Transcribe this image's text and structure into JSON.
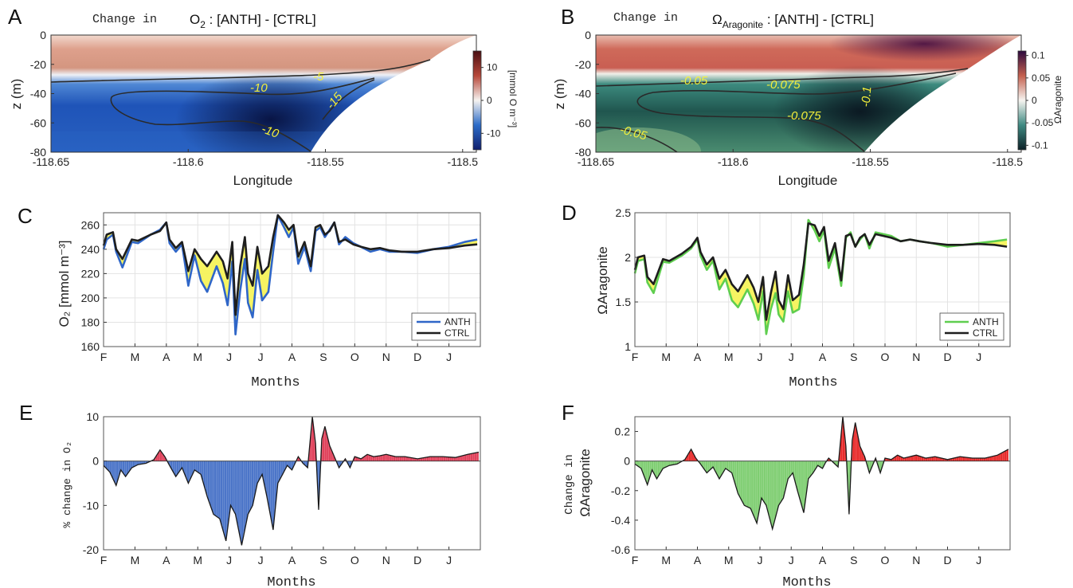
{
  "panels": {
    "A": {
      "letter": "A",
      "title_prefix": "Change in",
      "title_var": "O",
      "title_sub": "2",
      "title_rest": " : [ANTH] - [CTRL]",
      "xlabel": "Longitude",
      "ylabel": "z (m)",
      "cb_label": "[mmol O m⁻³]"
    },
    "B": {
      "letter": "B",
      "title_prefix": "Change in",
      "title_var": "Ω",
      "title_sub": "Aragonite",
      "title_rest": " : [ANTH] - [CTRL]",
      "xlabel": "Longitude",
      "ylabel": "z (m)",
      "cb_label": "ΩAragonite"
    },
    "C": {
      "letter": "C",
      "xlabel": "Months",
      "ylabel": "O₂ [mmol m⁻³]"
    },
    "D": {
      "letter": "D",
      "xlabel": "Months",
      "ylabel": "ΩAragonite"
    },
    "E": {
      "letter": "E",
      "xlabel": "Months",
      "ylabel": "% change in O₂"
    },
    "F": {
      "letter": "F",
      "xlabel": "Months",
      "ylabel_line1": "Change in",
      "ylabel_line2": "ΩAragonite"
    }
  },
  "chart_data": [
    {
      "id": "A",
      "type": "heatmap",
      "title": "Change in O2 : [ANTH] - [CTRL]",
      "xlabel": "Longitude",
      "ylabel": "z (m)",
      "xlim": [
        -118.65,
        -118.495
      ],
      "ylim": [
        -80,
        0
      ],
      "xticks": [
        -118.65,
        -118.6,
        -118.55,
        -118.5
      ],
      "yticks": [
        0,
        -20,
        -40,
        -60,
        -80
      ],
      "colorbar": {
        "label": "[mmol O m-3]",
        "ticks": [
          10,
          0,
          -10
        ],
        "range": [
          -15,
          15
        ],
        "colors": {
          "neg": "#1a3fa8",
          "zero": "#f4f2ef",
          "pos": "#7d1f1f"
        }
      },
      "contours": [
        {
          "level": -5,
          "label": "-5"
        },
        {
          "level": -10,
          "label": "-10"
        },
        {
          "level": -15,
          "label": "-15"
        }
      ],
      "contour_labels": [
        "-5",
        "-10",
        "-15",
        "-10"
      ]
    },
    {
      "id": "B",
      "type": "heatmap",
      "title": "Change in ΩAragonite : [ANTH] - [CTRL]",
      "xlabel": "Longitude",
      "ylabel": "z (m)",
      "xlim": [
        -118.65,
        -118.495
      ],
      "ylim": [
        -80,
        0
      ],
      "xticks": [
        -118.65,
        -118.6,
        -118.55,
        -118.5
      ],
      "yticks": [
        0,
        -20,
        -40,
        -60,
        -80
      ],
      "colorbar": {
        "label": "ΩAragonite",
        "ticks": [
          0.1,
          0.05,
          0,
          -0.05,
          -0.1
        ],
        "range": [
          -0.11,
          0.11
        ],
        "colors": {
          "neg": "#0f2b2e",
          "zero": "#f6f4f0",
          "pos": "#3c1050"
        }
      },
      "contour_labels": [
        "-0.05",
        "-0.075",
        "-0.1",
        "-0.075",
        "-0.05"
      ]
    },
    {
      "id": "C",
      "type": "line",
      "xlabel": "Months",
      "ylabel": "O2 [mmol m-3]",
      "ylim": [
        160,
        270
      ],
      "yticks": [
        160,
        180,
        200,
        220,
        240,
        260
      ],
      "categories": [
        "F",
        "M",
        "A",
        "M",
        "J",
        "J",
        "A",
        "S",
        "O",
        "N",
        "D",
        "J"
      ],
      "grid": true,
      "legend": "bottom-right",
      "fill_color": "#f6f35a",
      "series": [
        {
          "name": "ANTH",
          "color": "#2f66c8",
          "x": [
            0,
            0.1,
            0.3,
            0.4,
            0.6,
            0.9,
            1.1,
            1.5,
            1.8,
            2.0,
            2.1,
            2.3,
            2.5,
            2.7,
            2.9,
            3.1,
            3.3,
            3.6,
            3.8,
            3.95,
            4.1,
            4.2,
            4.35,
            4.5,
            4.6,
            4.75,
            4.9,
            5.05,
            5.25,
            5.4,
            5.55,
            5.75,
            5.9,
            6.05,
            6.2,
            6.4,
            6.6,
            6.75,
            6.9,
            7.05,
            7.2,
            7.35,
            7.5,
            7.7,
            7.95,
            8.2,
            8.5,
            8.8,
            9.1,
            9.5,
            10.0,
            10.5,
            11.0,
            11.5,
            11.9
          ],
          "y": [
            240,
            248,
            252,
            238,
            225,
            246,
            245,
            252,
            256,
            262,
            245,
            238,
            244,
            210,
            235,
            214,
            205,
            226,
            212,
            194,
            230,
            170,
            206,
            232,
            196,
            184,
            223,
            198,
            205,
            238,
            268,
            258,
            250,
            258,
            228,
            242,
            222,
            255,
            258,
            250,
            256,
            262,
            244,
            250,
            245,
            242,
            238,
            240,
            238,
            238,
            237,
            240,
            242,
            246,
            248
          ]
        },
        {
          "name": "CTRL",
          "color": "#1e1e1e",
          "x": [
            0,
            0.1,
            0.3,
            0.4,
            0.6,
            0.9,
            1.1,
            1.5,
            1.8,
            2.0,
            2.1,
            2.3,
            2.5,
            2.7,
            2.9,
            3.1,
            3.3,
            3.6,
            3.8,
            3.95,
            4.1,
            4.2,
            4.35,
            4.5,
            4.6,
            4.75,
            4.9,
            5.05,
            5.25,
            5.4,
            5.55,
            5.75,
            5.9,
            6.05,
            6.2,
            6.4,
            6.6,
            6.75,
            6.9,
            7.05,
            7.2,
            7.35,
            7.5,
            7.7,
            7.95,
            8.2,
            8.5,
            8.8,
            9.1,
            9.5,
            10.0,
            10.5,
            11.0,
            11.5,
            11.9
          ],
          "y": [
            243,
            252,
            254,
            240,
            232,
            248,
            247,
            252,
            255,
            262,
            248,
            241,
            246,
            222,
            240,
            232,
            226,
            238,
            230,
            216,
            246,
            186,
            226,
            250,
            220,
            210,
            242,
            220,
            226,
            250,
            268,
            262,
            256,
            260,
            234,
            246,
            226,
            258,
            260,
            252,
            255,
            262,
            246,
            248,
            244,
            242,
            240,
            241,
            239,
            238,
            238,
            240,
            241,
            243,
            244
          ]
        }
      ]
    },
    {
      "id": "D",
      "type": "line",
      "xlabel": "Months",
      "ylabel": "ΩAragonite",
      "ylim": [
        1,
        2.5
      ],
      "yticks": [
        1,
        1.5,
        2,
        2.5
      ],
      "categories": [
        "F",
        "M",
        "A",
        "M",
        "J",
        "J",
        "A",
        "S",
        "O",
        "N",
        "D",
        "J"
      ],
      "grid": true,
      "legend": "bottom-right",
      "fill_color": "#f6f35a",
      "series": [
        {
          "name": "ANTH",
          "color": "#5fce4f",
          "x": [
            0,
            0.1,
            0.3,
            0.4,
            0.6,
            0.9,
            1.1,
            1.5,
            1.8,
            2.0,
            2.1,
            2.3,
            2.5,
            2.7,
            2.9,
            3.1,
            3.3,
            3.6,
            3.8,
            3.95,
            4.1,
            4.2,
            4.35,
            4.5,
            4.6,
            4.75,
            4.9,
            5.05,
            5.25,
            5.4,
            5.55,
            5.75,
            5.9,
            6.05,
            6.2,
            6.4,
            6.6,
            6.75,
            6.9,
            7.05,
            7.2,
            7.35,
            7.5,
            7.7,
            7.95,
            8.2,
            8.5,
            8.8,
            9.1,
            9.5,
            10.0,
            10.5,
            11.0,
            11.5,
            11.9
          ],
          "y": [
            1.82,
            1.96,
            1.98,
            1.72,
            1.6,
            1.95,
            1.94,
            2.02,
            2.1,
            2.2,
            2.02,
            1.86,
            1.96,
            1.64,
            1.76,
            1.52,
            1.44,
            1.64,
            1.48,
            1.3,
            1.62,
            1.14,
            1.42,
            1.6,
            1.36,
            1.28,
            1.62,
            1.38,
            1.42,
            1.8,
            2.42,
            2.3,
            2.18,
            2.3,
            1.88,
            2.1,
            1.68,
            2.22,
            2.28,
            2.12,
            2.2,
            2.26,
            2.1,
            2.28,
            2.26,
            2.24,
            2.18,
            2.2,
            2.18,
            2.16,
            2.12,
            2.14,
            2.16,
            2.18,
            2.2
          ]
        },
        {
          "name": "CTRL",
          "color": "#1e1e1e",
          "x": [
            0,
            0.1,
            0.3,
            0.4,
            0.6,
            0.9,
            1.1,
            1.5,
            1.8,
            2.0,
            2.1,
            2.3,
            2.5,
            2.7,
            2.9,
            3.1,
            3.3,
            3.6,
            3.8,
            3.95,
            4.1,
            4.2,
            4.35,
            4.5,
            4.6,
            4.75,
            4.9,
            5.05,
            5.25,
            5.4,
            5.55,
            5.75,
            5.9,
            6.05,
            6.2,
            6.4,
            6.6,
            6.75,
            6.9,
            7.05,
            7.2,
            7.35,
            7.5,
            7.7,
            7.95,
            8.2,
            8.5,
            8.8,
            9.1,
            9.5,
            10.0,
            10.5,
            11.0,
            11.5,
            11.9
          ],
          "y": [
            1.86,
            2.0,
            2.02,
            1.78,
            1.7,
            1.98,
            1.96,
            2.04,
            2.12,
            2.22,
            2.06,
            1.92,
            2.0,
            1.76,
            1.86,
            1.7,
            1.62,
            1.8,
            1.66,
            1.5,
            1.78,
            1.3,
            1.6,
            1.84,
            1.52,
            1.42,
            1.8,
            1.52,
            1.58,
            1.92,
            2.38,
            2.36,
            2.24,
            2.34,
            1.96,
            2.16,
            1.74,
            2.24,
            2.26,
            2.12,
            2.22,
            2.26,
            2.14,
            2.26,
            2.24,
            2.22,
            2.18,
            2.2,
            2.18,
            2.16,
            2.14,
            2.14,
            2.15,
            2.14,
            2.12
          ]
        }
      ]
    },
    {
      "id": "E",
      "type": "area",
      "xlabel": "Months",
      "ylabel": "% change in O2",
      "ylim": [
        -20,
        10
      ],
      "yticks": [
        -20,
        -10,
        0,
        10
      ],
      "categories": [
        "F",
        "M",
        "A",
        "M",
        "J",
        "J",
        "A",
        "S",
        "O",
        "N",
        "D",
        "J"
      ],
      "neg_color": "#4a74c8",
      "pos_color": "#e0405a",
      "x": [
        0,
        0.2,
        0.4,
        0.55,
        0.7,
        0.9,
        1.1,
        1.35,
        1.6,
        1.8,
        1.95,
        2.1,
        2.3,
        2.5,
        2.7,
        2.9,
        3.1,
        3.3,
        3.5,
        3.7,
        3.9,
        4.05,
        4.2,
        4.4,
        4.6,
        4.75,
        4.9,
        5.05,
        5.2,
        5.4,
        5.55,
        5.7,
        5.85,
        6.0,
        6.1,
        6.2,
        6.35,
        6.5,
        6.65,
        6.75,
        6.85,
        6.95,
        7.05,
        7.2,
        7.35,
        7.5,
        7.7,
        7.85,
        8.0,
        8.2,
        8.4,
        8.6,
        8.8,
        9.0,
        9.3,
        9.6,
        10.0,
        10.4,
        10.8,
        11.2,
        11.6,
        11.95
      ],
      "y": [
        -1.0,
        -2.5,
        -5.5,
        -2.0,
        -3.5,
        -1.5,
        -0.8,
        -0.5,
        0.3,
        2.5,
        1.0,
        -1.0,
        -3.5,
        -1.5,
        -5.0,
        -2.0,
        -3.0,
        -8.0,
        -12.0,
        -13.0,
        -18.0,
        -10.0,
        -12.0,
        -19.0,
        -12.0,
        -10.0,
        -5.0,
        -3.0,
        -8.0,
        -15.5,
        -5.0,
        -3.0,
        -1.0,
        -2.0,
        -0.5,
        1.0,
        -0.5,
        -1.5,
        10.0,
        4.0,
        -11.0,
        5.0,
        7.8,
        3.5,
        1.0,
        -1.5,
        0.5,
        -1.5,
        1.0,
        0.5,
        1.5,
        1.0,
        1.2,
        1.5,
        1.0,
        1.0,
        0.5,
        1.0,
        1.0,
        0.8,
        1.5,
        2.0
      ]
    },
    {
      "id": "F",
      "type": "area",
      "xlabel": "Months",
      "ylabel": "Change in ΩAragonite",
      "ylim": [
        -0.6,
        0.3
      ],
      "yticks": [
        -0.6,
        -0.4,
        -0.2,
        0,
        0.2
      ],
      "categories": [
        "F",
        "M",
        "A",
        "M",
        "J",
        "J",
        "A",
        "S",
        "O",
        "N",
        "D",
        "J"
      ],
      "neg_color": "#7fce72",
      "pos_color": "#e82a2a",
      "x": [
        0,
        0.2,
        0.4,
        0.55,
        0.7,
        0.9,
        1.1,
        1.35,
        1.6,
        1.8,
        1.95,
        2.1,
        2.3,
        2.5,
        2.7,
        2.9,
        3.1,
        3.3,
        3.5,
        3.7,
        3.9,
        4.05,
        4.2,
        4.4,
        4.6,
        4.75,
        4.9,
        5.05,
        5.2,
        5.4,
        5.55,
        5.7,
        5.85,
        6.0,
        6.1,
        6.2,
        6.35,
        6.5,
        6.65,
        6.75,
        6.85,
        6.95,
        7.05,
        7.2,
        7.35,
        7.5,
        7.7,
        7.85,
        8.0,
        8.2,
        8.4,
        8.6,
        8.8,
        9.0,
        9.3,
        9.6,
        10.0,
        10.4,
        10.8,
        11.2,
        11.6,
        11.95
      ],
      "y": [
        -0.02,
        -0.05,
        -0.16,
        -0.06,
        -0.12,
        -0.05,
        -0.03,
        -0.02,
        0.01,
        0.08,
        0.02,
        -0.02,
        -0.08,
        -0.04,
        -0.12,
        -0.05,
        -0.08,
        -0.22,
        -0.3,
        -0.32,
        -0.42,
        -0.25,
        -0.3,
        -0.46,
        -0.3,
        -0.25,
        -0.12,
        -0.08,
        -0.2,
        -0.35,
        -0.12,
        -0.08,
        -0.03,
        -0.05,
        -0.01,
        0.02,
        -0.01,
        -0.04,
        0.3,
        0.1,
        -0.36,
        0.14,
        0.26,
        0.1,
        0.03,
        -0.08,
        0.02,
        -0.08,
        0.02,
        0.01,
        0.04,
        0.02,
        0.03,
        0.04,
        0.02,
        0.03,
        0.01,
        0.03,
        0.02,
        0.02,
        0.04,
        0.08
      ]
    }
  ]
}
